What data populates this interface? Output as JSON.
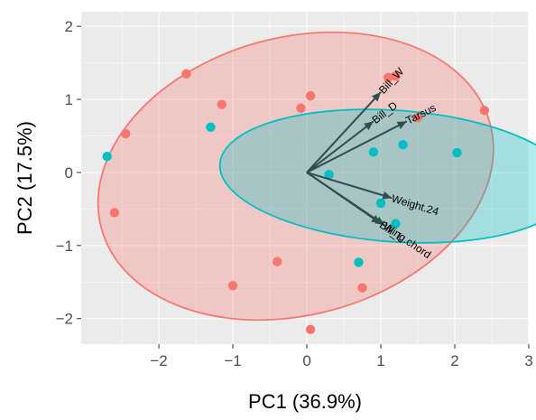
{
  "chart_data": {
    "type": "scatter",
    "subtype": "PCA biplot",
    "xlabel": "PC1 (36.9%)",
    "ylabel": "PC2 (17.5%)",
    "xlim": [
      -3.05,
      3.0
    ],
    "ylim": [
      -2.35,
      2.2
    ],
    "x_ticks": [
      -2,
      -1,
      0,
      1,
      2,
      3
    ],
    "x_tick_labels": [
      "−2",
      "−1",
      "0",
      "1",
      "2",
      "3"
    ],
    "y_ticks": [
      -2,
      -1,
      0,
      1,
      2
    ],
    "y_tick_labels": [
      "−2",
      "−1",
      "0",
      "1",
      "2"
    ],
    "grid": true,
    "legend": "none",
    "colors": {
      "panel": "#EBEBEB",
      "grid": "#FFFFFF",
      "group_a": "#F8766D",
      "group_b": "#00BFC4",
      "arrow": "#2F4F4F"
    },
    "groups": [
      {
        "color": "#F8766D",
        "points": [
          [
            -2.45,
            0.53
          ],
          [
            -2.6,
            -0.55
          ],
          [
            -1.63,
            1.35
          ],
          [
            -1.15,
            0.93
          ],
          [
            -0.08,
            0.88
          ],
          [
            0.05,
            1.05
          ],
          [
            1.1,
            1.3
          ],
          [
            1.2,
            1.32
          ],
          [
            1.5,
            0.75
          ],
          [
            2.4,
            0.85
          ],
          [
            -0.4,
            -1.22
          ],
          [
            -1.0,
            -1.55
          ],
          [
            0.75,
            -1.58
          ],
          [
            0.05,
            -2.15
          ]
        ],
        "ellipse": {
          "cx": -0.15,
          "cy": -0.05,
          "rx": 2.72,
          "ry": 1.9,
          "angle_deg": 15
        }
      },
      {
        "color": "#00BFC4",
        "points": [
          [
            -2.7,
            0.22
          ],
          [
            -1.3,
            0.62
          ],
          [
            0.3,
            -0.03
          ],
          [
            0.9,
            0.28
          ],
          [
            1.3,
            0.38
          ],
          [
            2.03,
            0.27
          ],
          [
            1.0,
            -0.42
          ],
          [
            1.2,
            -0.7
          ],
          [
            0.7,
            -1.23
          ]
        ],
        "ellipse": {
          "cx": 1.2,
          "cy": -0.05,
          "rx": 2.38,
          "ry": 0.9,
          "angle_deg": -4
        }
      }
    ],
    "loadings": [
      {
        "name": "Bill_W",
        "x": 1.0,
        "y": 1.1
      },
      {
        "name": "Bill_D",
        "x": 0.9,
        "y": 0.7
      },
      {
        "name": "Tarsus",
        "x": 1.35,
        "y": 0.7
      },
      {
        "name": "Weight.24",
        "x": 1.15,
        "y": -0.35
      },
      {
        "name": "Wing.chord",
        "x": 1.05,
        "y": -0.72
      },
      {
        "name": "Bill_L",
        "x": 1.0,
        "y": -0.7
      }
    ]
  }
}
